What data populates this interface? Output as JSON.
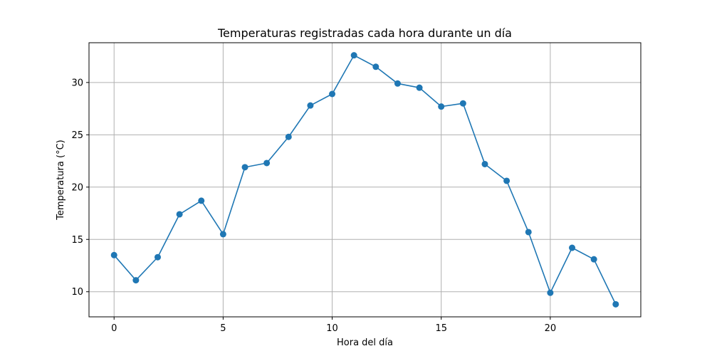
{
  "chart_data": {
    "type": "line",
    "title": "Temperaturas registradas cada hora durante un día",
    "xlabel": "Hora del día",
    "ylabel": "Temperatura (°C)",
    "x": [
      0,
      1,
      2,
      3,
      4,
      5,
      6,
      7,
      8,
      9,
      10,
      11,
      12,
      13,
      14,
      15,
      16,
      17,
      18,
      19,
      20,
      21,
      22,
      23
    ],
    "series": [
      {
        "values": [
          13.5,
          11.1,
          13.3,
          17.4,
          18.7,
          15.5,
          21.9,
          22.3,
          24.8,
          27.8,
          28.9,
          32.6,
          31.5,
          29.9,
          29.5,
          27.7,
          28.0,
          22.2,
          20.6,
          15.7,
          9.9,
          14.2,
          13.1,
          8.8
        ],
        "color": "#1f77b4",
        "marker": "circle"
      }
    ],
    "xlim": [
      -1.15,
      24.15
    ],
    "ylim": [
      7.6,
      33.8
    ],
    "xticks": [
      0,
      5,
      10,
      15,
      20
    ],
    "yticks": [
      10,
      15,
      20,
      25,
      30
    ],
    "grid": true,
    "legend": false
  }
}
